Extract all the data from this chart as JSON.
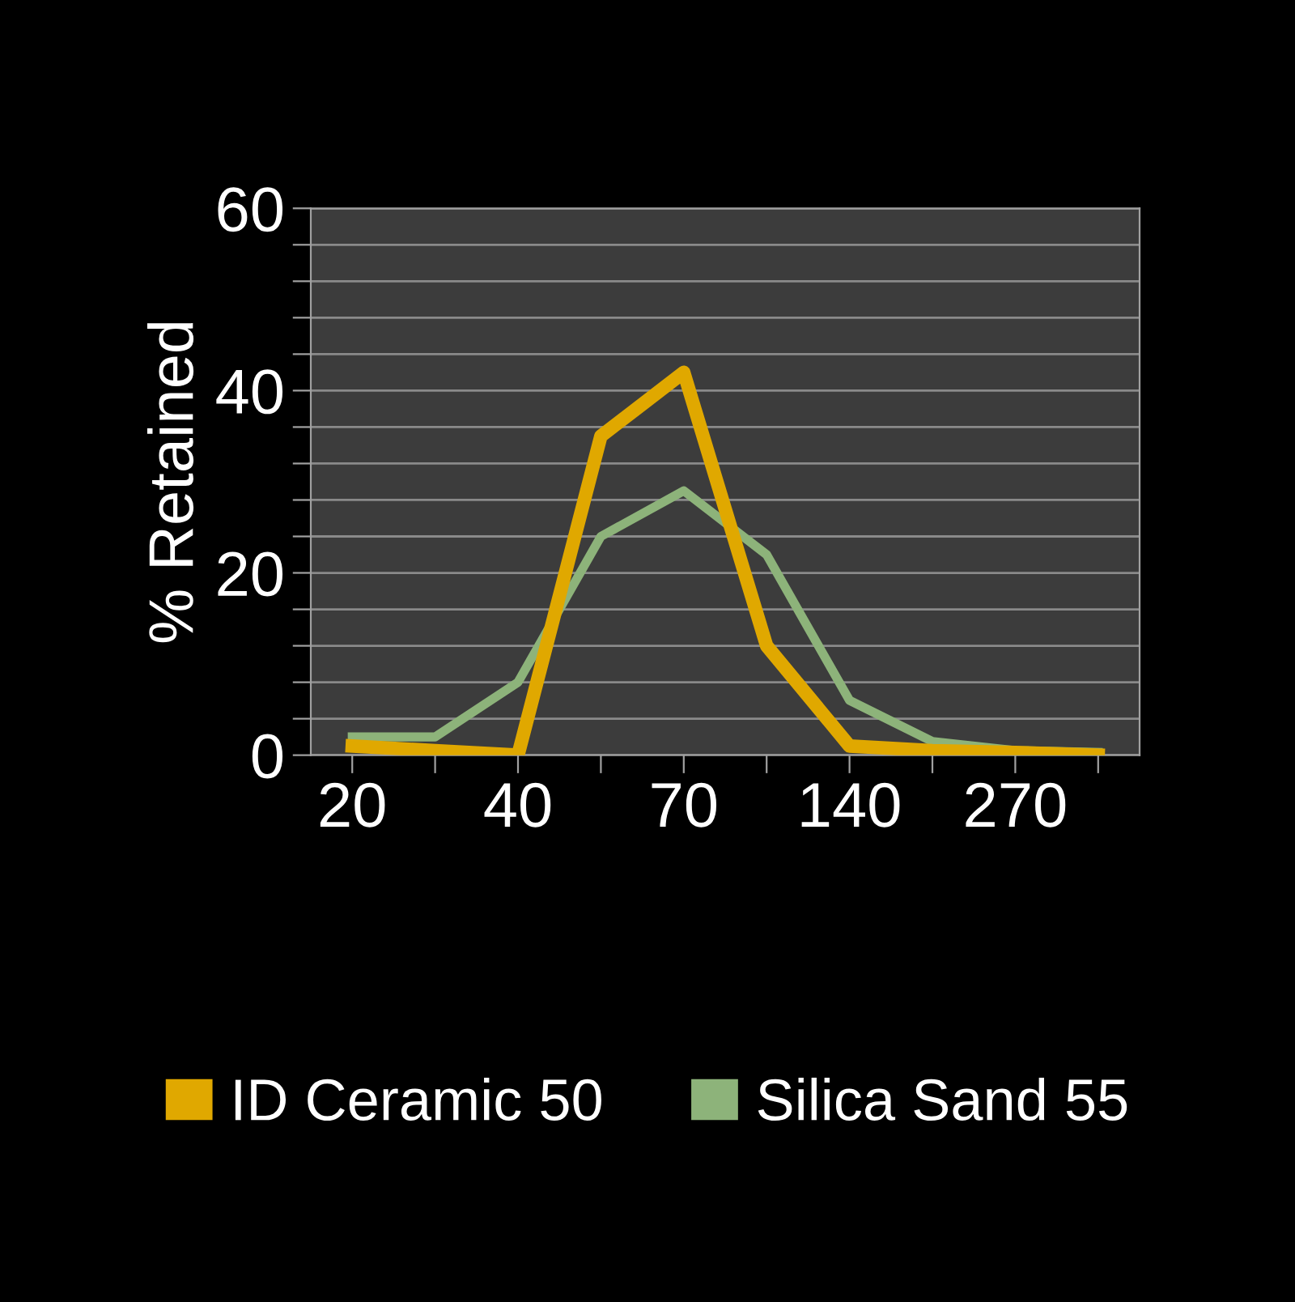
{
  "chart_data": {
    "type": "line",
    "ylabel": "% Retained",
    "categories": [
      "20",
      null,
      "40",
      null,
      "70",
      null,
      "140",
      null,
      "270",
      null
    ],
    "series": [
      {
        "name": "ID Ceramic 50",
        "color": "#e0a800",
        "values": [
          1,
          0.5,
          0,
          35,
          42,
          12,
          1,
          0.5,
          0.3,
          0
        ]
      },
      {
        "name": "Silica Sand 55",
        "color": "#8db37a",
        "values": [
          2,
          2,
          8,
          24,
          29,
          22,
          6,
          1.5,
          0.5,
          0.3
        ]
      }
    ],
    "ylim": [
      0,
      60
    ],
    "yticks": [
      0,
      {
        "value": 4,
        "label": null
      },
      {
        "value": 8,
        "label": null
      },
      {
        "value": 12,
        "label": null
      },
      {
        "value": 16,
        "label": null
      },
      20,
      {
        "value": 24,
        "label": null
      },
      {
        "value": 28,
        "label": null
      },
      {
        "value": 32,
        "label": null
      },
      {
        "value": 36,
        "label": null
      },
      40,
      {
        "value": 44,
        "label": null
      },
      {
        "value": 48,
        "label": null
      },
      {
        "value": 52,
        "label": null
      },
      {
        "value": 56,
        "label": null
      },
      60
    ],
    "grid": "y",
    "legend": "bottom",
    "marker": "none",
    "line_style": "solid"
  }
}
